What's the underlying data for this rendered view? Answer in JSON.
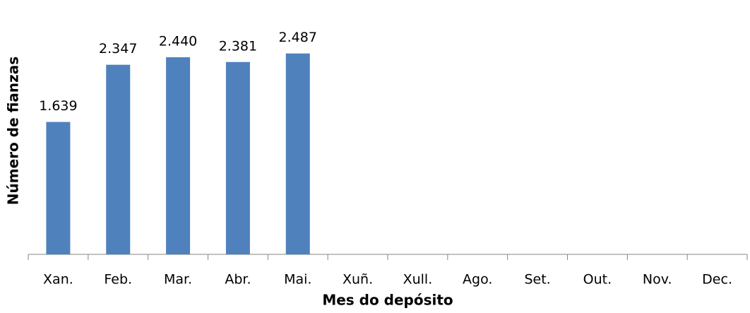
{
  "chart_data": {
    "type": "bar",
    "x_label": "Mes do depósito",
    "y_label": "Número de fianzas",
    "categories": [
      "Xan.",
      "Feb.",
      "Mar.",
      "Abr.",
      "Mai.",
      "Xuñ.",
      "Xull.",
      "Ago.",
      "Set.",
      "Out.",
      "Nov.",
      "Dec."
    ],
    "values": [
      1639,
      2347,
      2440,
      2381,
      2487,
      null,
      null,
      null,
      null,
      null,
      null,
      null
    ],
    "value_labels": [
      "1.639",
      "2.347",
      "2.440",
      "2.381",
      "2.487",
      null,
      null,
      null,
      null,
      null,
      null,
      null
    ],
    "color": "#4f81bd",
    "ylim": [
      0,
      3000
    ]
  }
}
